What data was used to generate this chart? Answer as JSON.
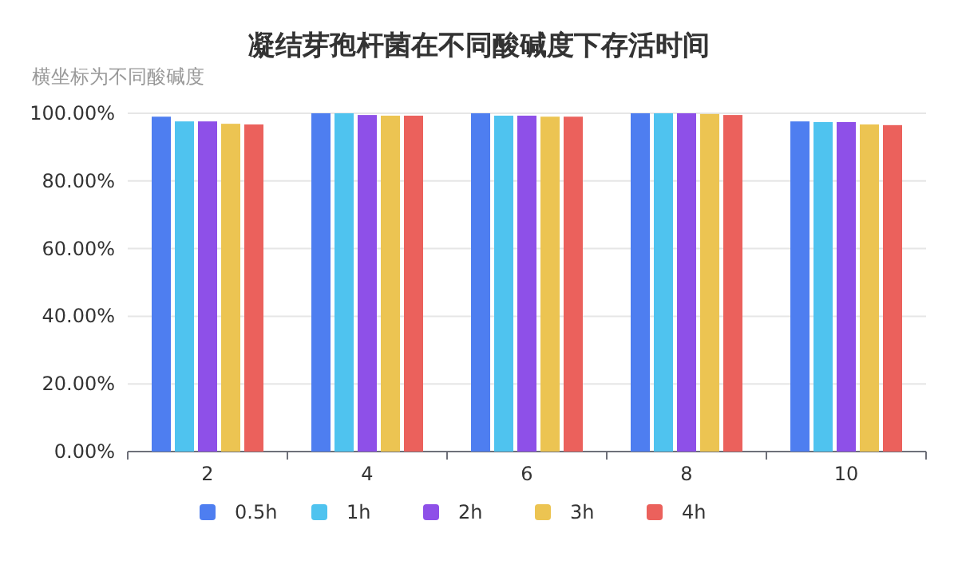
{
  "chart_data": {
    "type": "bar",
    "title": "凝结芽孢杆菌在不同酸碱度下存活时间",
    "ylabel": "横坐标为不同酸碱度",
    "categories": [
      "2",
      "4",
      "6",
      "8",
      "10"
    ],
    "series": [
      {
        "name": "0.5h",
        "color": "#4e7ef0",
        "values": [
          99.0,
          100.0,
          100.0,
          100.0,
          97.6
        ]
      },
      {
        "name": "1h",
        "color": "#4fc3ef",
        "values": [
          97.6,
          100.0,
          99.3,
          100.0,
          97.4
        ]
      },
      {
        "name": "2h",
        "color": "#8e50e8",
        "values": [
          97.6,
          99.5,
          99.3,
          100.0,
          97.4
        ]
      },
      {
        "name": "3h",
        "color": "#ecc452",
        "values": [
          96.9,
          99.3,
          99.0,
          99.8,
          96.7
        ]
      },
      {
        "name": "4h",
        "color": "#eb615c",
        "values": [
          96.7,
          99.3,
          99.0,
          99.5,
          96.5
        ]
      }
    ],
    "ylim": [
      0,
      100
    ],
    "yticks": [
      {
        "value": 0,
        "label": "0.00%"
      },
      {
        "value": 20,
        "label": "20.00%"
      },
      {
        "value": 40,
        "label": "40.00%"
      },
      {
        "value": 60,
        "label": "60.00%"
      },
      {
        "value": 80,
        "label": "80.00%"
      },
      {
        "value": 100,
        "label": "100.00%"
      }
    ],
    "grid": "y",
    "legend": "bottom"
  }
}
